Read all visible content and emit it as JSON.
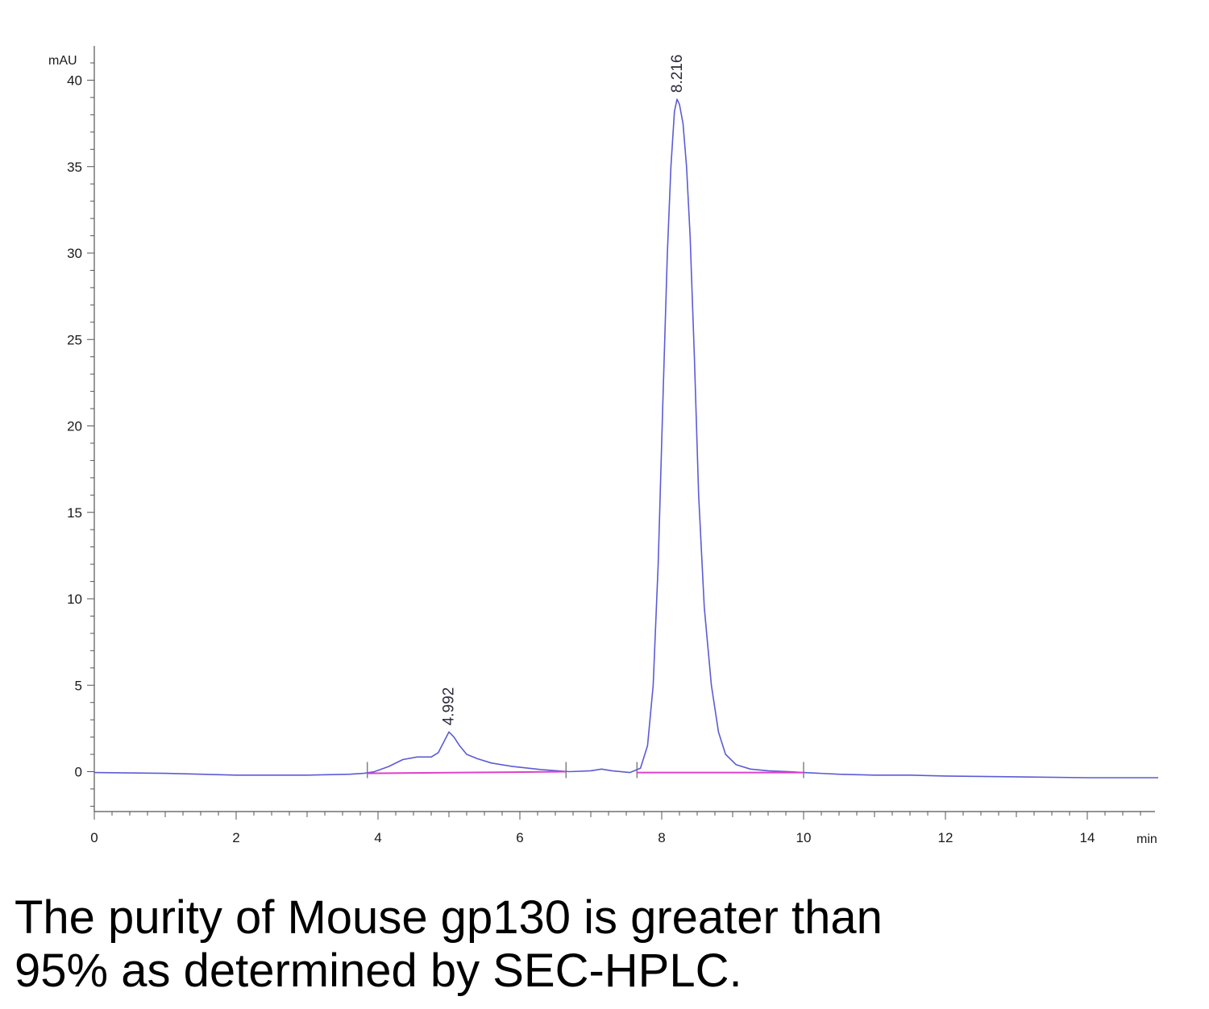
{
  "chart_data": {
    "type": "line",
    "title": "",
    "xlabel": "min",
    "ylabel": "mAU",
    "xlim": [
      0,
      15
    ],
    "ylim": [
      -2.3,
      41.5
    ],
    "x_ticks": [
      0,
      2,
      4,
      6,
      8,
      10,
      12,
      14
    ],
    "y_ticks": [
      0,
      5,
      10,
      15,
      20,
      25,
      30,
      35,
      40
    ],
    "grid": false,
    "series": [
      {
        "color": "#5b5bd6",
        "x": [
          0,
          1,
          2,
          3,
          3.6,
          3.8,
          3.95,
          4.15,
          4.35,
          4.55,
          4.75,
          4.85,
          4.95,
          5.0,
          5.07,
          5.15,
          5.25,
          5.4,
          5.6,
          5.9,
          6.3,
          6.7,
          7.0,
          7.15,
          7.3,
          7.55,
          7.7,
          7.8,
          7.88,
          7.95,
          8.02,
          8.08,
          8.13,
          8.18,
          8.216,
          8.25,
          8.3,
          8.35,
          8.4,
          8.46,
          8.52,
          8.6,
          8.7,
          8.8,
          8.9,
          9.05,
          9.25,
          9.5,
          9.8,
          10.0,
          10.5,
          11.0,
          11.5,
          12.0,
          13.0,
          14.0,
          15.0
        ],
        "y": [
          -0.05,
          -0.1,
          -0.2,
          -0.2,
          -0.15,
          -0.1,
          0.0,
          0.3,
          0.7,
          0.85,
          0.85,
          1.1,
          1.9,
          2.3,
          2.0,
          1.5,
          1.0,
          0.75,
          0.5,
          0.3,
          0.12,
          0.0,
          0.05,
          0.15,
          0.05,
          -0.05,
          0.2,
          1.5,
          5.0,
          12.0,
          22.0,
          30.0,
          35.0,
          38.2,
          38.9,
          38.6,
          37.5,
          35.0,
          31.0,
          24.0,
          16.0,
          9.5,
          5.0,
          2.3,
          1.0,
          0.4,
          0.15,
          0.05,
          0.0,
          -0.05,
          -0.15,
          -0.2,
          -0.2,
          -0.25,
          -0.3,
          -0.35,
          -0.35
        ]
      },
      {
        "color": "#e040c8",
        "x": [
          3.85,
          6.65
        ],
        "y": [
          -0.1,
          0.0
        ]
      },
      {
        "color": "#e040c8",
        "x": [
          7.65,
          10.0
        ],
        "y": [
          -0.05,
          -0.05
        ]
      }
    ],
    "annotations": [
      {
        "text": "4.992",
        "x": 4.992,
        "y": 2.3
      },
      {
        "text": "8.216",
        "x": 8.216,
        "y": 38.9
      }
    ],
    "integration_marks": [
      3.85,
      6.65,
      7.65,
      10.0
    ]
  },
  "caption": {
    "line1": "The purity of Mouse gp130 is greater than",
    "line2": "95% as determined by SEC-HPLC."
  }
}
